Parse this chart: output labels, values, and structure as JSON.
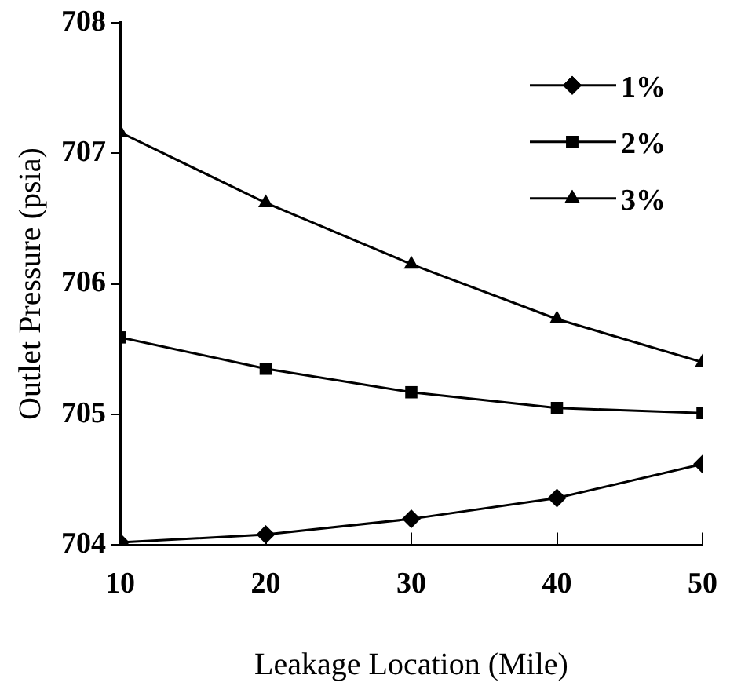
{
  "chart_data": {
    "type": "line",
    "xlabel": "Leakage Location (Mile)",
    "ylabel": "Outlet Pressure (psia)",
    "x": [
      10,
      20,
      30,
      40,
      50
    ],
    "series": [
      {
        "name": "1%",
        "color": "#000000",
        "marker": "diamond",
        "values": [
          704.02,
          704.08,
          704.2,
          704.36,
          704.62
        ]
      },
      {
        "name": "2%",
        "color": "#000000",
        "marker": "square",
        "values": [
          705.59,
          705.35,
          705.17,
          705.05,
          705.01
        ]
      },
      {
        "name": "3%",
        "color": "#000000",
        "marker": "triangle",
        "values": [
          707.16,
          706.62,
          706.15,
          705.73,
          705.4
        ]
      }
    ],
    "xlim": [
      10,
      50
    ],
    "xticks": [
      10,
      20,
      30,
      40,
      50
    ],
    "ylim": [
      704,
      708
    ],
    "yticks": [
      704,
      705,
      706,
      707,
      708
    ],
    "grid": false,
    "legend": "top right",
    "line_style": "solid"
  }
}
